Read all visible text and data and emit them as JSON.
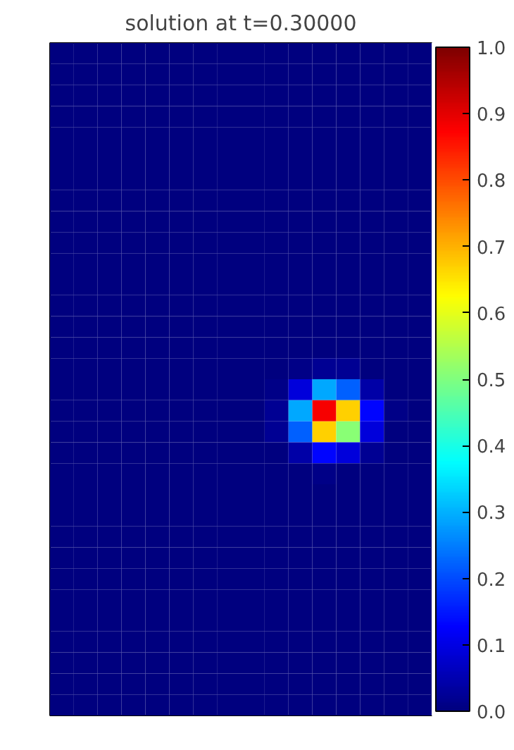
{
  "chart_data": {
    "type": "heatmap",
    "title": "solution at t=0.30000",
    "categories": [
      null,
      null,
      null,
      null,
      null,
      null,
      null,
      null,
      null,
      null,
      null,
      null,
      null,
      null,
      null,
      null
    ],
    "y_categories": [
      null,
      null,
      null,
      null,
      null,
      null,
      null,
      null,
      null,
      null,
      null,
      null,
      null,
      null,
      null,
      null,
      null,
      null,
      null,
      null,
      null,
      null,
      null,
      null,
      null,
      null,
      null,
      null,
      null,
      null,
      null,
      null
    ],
    "cells": [
      [
        0,
        0,
        0,
        0,
        0,
        0,
        0,
        0,
        0,
        0,
        0,
        0,
        0,
        0,
        0,
        0
      ],
      [
        0,
        0,
        0,
        0,
        0,
        0,
        0,
        0,
        0,
        0,
        0,
        0,
        0,
        0,
        0,
        0
      ],
      [
        0,
        0,
        0,
        0,
        0,
        0,
        0,
        0,
        0,
        0,
        0,
        0,
        0,
        0,
        0,
        0
      ],
      [
        0,
        0,
        0,
        0,
        0,
        0,
        0,
        0,
        0,
        0,
        0,
        0,
        0,
        0,
        0,
        0
      ],
      [
        0,
        0,
        0,
        0,
        0,
        0,
        0,
        0,
        0,
        0,
        0,
        0,
        0,
        0,
        0,
        0
      ],
      [
        0,
        0,
        0,
        0,
        0,
        0,
        0,
        0,
        0,
        0,
        0,
        0,
        0,
        0,
        0,
        0
      ],
      [
        0,
        0,
        0,
        0,
        0,
        0,
        0,
        0,
        0,
        0,
        0,
        0,
        0,
        0,
        0,
        0
      ],
      [
        0,
        0,
        0,
        0,
        0,
        0,
        0,
        0,
        0,
        0,
        0,
        0,
        0,
        0,
        0,
        0
      ],
      [
        0,
        0,
        0,
        0,
        0,
        0,
        0,
        0,
        0,
        0,
        0,
        0,
        0,
        0,
        0,
        0
      ],
      [
        0,
        0,
        0,
        0,
        0,
        0,
        0,
        0,
        0,
        0,
        0,
        0,
        0,
        0,
        0,
        0
      ],
      [
        0,
        0,
        0,
        0,
        0,
        0,
        0,
        0,
        0,
        0,
        0,
        0,
        0,
        0,
        0,
        0
      ],
      [
        0,
        0,
        0,
        0,
        0,
        0,
        0,
        0,
        0,
        0,
        0,
        0,
        0,
        0,
        0,
        0
      ],
      [
        0,
        0,
        0,
        0,
        0,
        0,
        0,
        0,
        0,
        0,
        0,
        0,
        0,
        0,
        0,
        0
      ],
      [
        0,
        0,
        0,
        0,
        0,
        0,
        0,
        0,
        0,
        0,
        0,
        0,
        0,
        0,
        0,
        0
      ],
      [
        0,
        0,
        0,
        0,
        0,
        0,
        0,
        0,
        0,
        0,
        0,
        0,
        0,
        0,
        0,
        0
      ],
      [
        0,
        0,
        0,
        0,
        0,
        0,
        0,
        0,
        0,
        0,
        0.01,
        0.02,
        0.02,
        0,
        0,
        0
      ],
      [
        0,
        0,
        0,
        0,
        0,
        0,
        0,
        0,
        0,
        0.01,
        0.09,
        0.29,
        0.22,
        0.04,
        0,
        0
      ],
      [
        0,
        0,
        0,
        0,
        0,
        0,
        0,
        0,
        0,
        0.02,
        0.29,
        0.88,
        0.67,
        0.13,
        0.01,
        0
      ],
      [
        0,
        0,
        0,
        0,
        0,
        0,
        0,
        0,
        0,
        0.02,
        0.22,
        0.67,
        0.51,
        0.09,
        0,
        0
      ],
      [
        0,
        0,
        0,
        0,
        0,
        0,
        0,
        0,
        0,
        0,
        0.04,
        0.13,
        0.09,
        0.02,
        0,
        0
      ],
      [
        0,
        0,
        0,
        0,
        0,
        0,
        0,
        0,
        0,
        0,
        0,
        0.01,
        0,
        0,
        0,
        0
      ],
      [
        0,
        0,
        0,
        0,
        0,
        0,
        0,
        0,
        0,
        0,
        0,
        0,
        0,
        0,
        0,
        0
      ],
      [
        0,
        0,
        0,
        0,
        0,
        0,
        0,
        0,
        0,
        0,
        0,
        0,
        0,
        0,
        0,
        0
      ],
      [
        0,
        0,
        0,
        0,
        0,
        0,
        0,
        0,
        0,
        0,
        0,
        0,
        0,
        0,
        0,
        0
      ],
      [
        0,
        0,
        0,
        0,
        0,
        0,
        0,
        0,
        0,
        0,
        0,
        0,
        0,
        0,
        0,
        0
      ],
      [
        0,
        0,
        0,
        0,
        0,
        0,
        0,
        0,
        0,
        0,
        0,
        0,
        0,
        0,
        0,
        0
      ],
      [
        0,
        0,
        0,
        0,
        0,
        0,
        0,
        0,
        0,
        0,
        0,
        0,
        0,
        0,
        0,
        0
      ],
      [
        0,
        0,
        0,
        0,
        0,
        0,
        0,
        0,
        0,
        0,
        0,
        0,
        0,
        0,
        0,
        0
      ],
      [
        0,
        0,
        0,
        0,
        0,
        0,
        0,
        0,
        0,
        0,
        0,
        0,
        0,
        0,
        0,
        0
      ],
      [
        0,
        0,
        0,
        0,
        0,
        0,
        0,
        0,
        0,
        0,
        0,
        0,
        0,
        0,
        0,
        0
      ],
      [
        0,
        0,
        0,
        0,
        0,
        0,
        0,
        0,
        0,
        0,
        0,
        0,
        0,
        0,
        0,
        0
      ],
      [
        0,
        0,
        0,
        0,
        0,
        0,
        0,
        0,
        0,
        0,
        0,
        0,
        0,
        0,
        0,
        0
      ]
    ],
    "clim": [
      0,
      1
    ],
    "cticks": [
      {
        "value": 0,
        "label": "0.0"
      },
      {
        "value": 0.1,
        "label": "0.1"
      },
      {
        "value": 0.2,
        "label": "0.2"
      },
      {
        "value": 0.3,
        "label": "0.3"
      },
      {
        "value": 0.4,
        "label": "0.4"
      },
      {
        "value": 0.5,
        "label": "0.5"
      },
      {
        "value": 0.6,
        "label": "0.6"
      },
      {
        "value": 0.7,
        "label": "0.7"
      },
      {
        "value": 0.8,
        "label": "0.8"
      },
      {
        "value": 0.9,
        "label": "0.9"
      },
      {
        "value": 1,
        "label": "1.0"
      }
    ]
  }
}
